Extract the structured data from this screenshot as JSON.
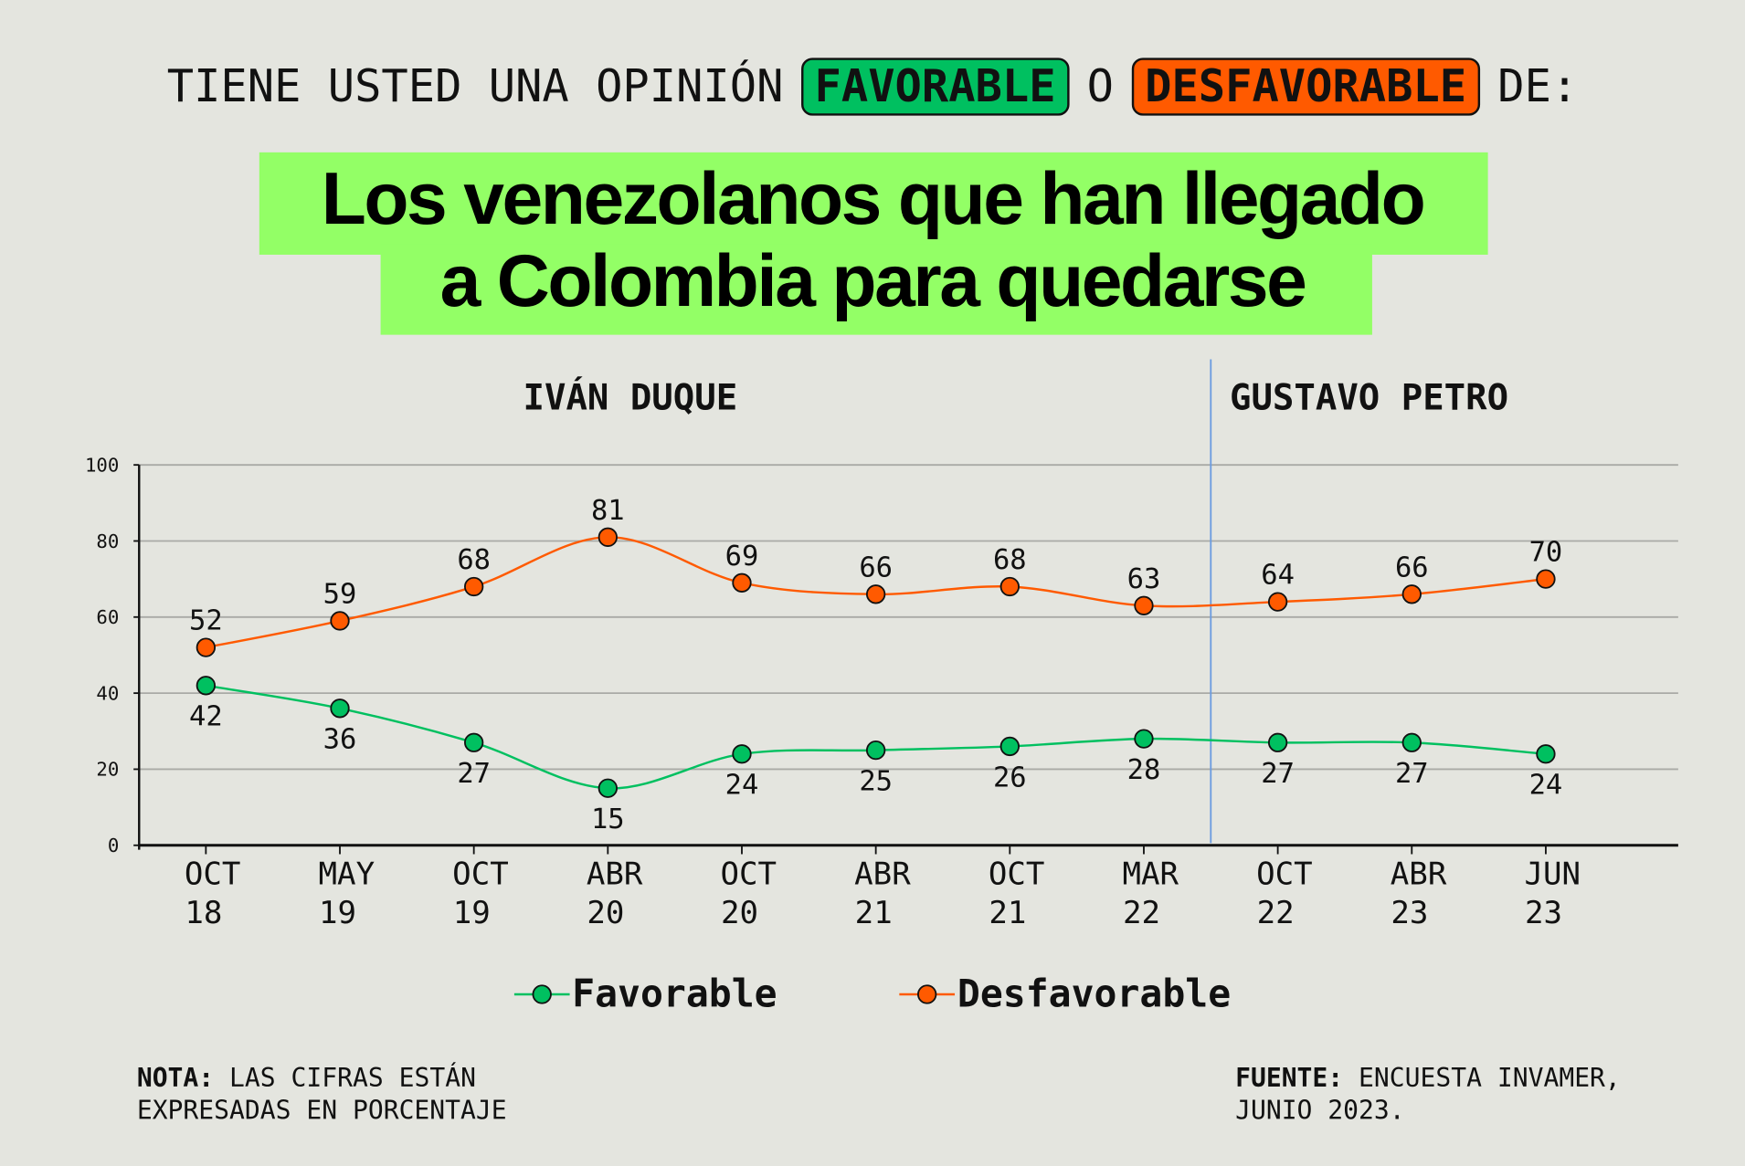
{
  "header": {
    "question_prefix": "TIENE USTED UNA OPINIÓN",
    "favorable": "FAVORABLE",
    "conj": "O",
    "desfavorable": "DESFAVORABLE",
    "suffix": "DE:"
  },
  "title": {
    "line1": "Los venezolanos que han llegado",
    "line2": "a Colombia para quedarse"
  },
  "eras": {
    "duque": "IVÁN DUQUE",
    "petro": "GUSTAVO PETRO"
  },
  "colors": {
    "favorable": "#00c060",
    "desfavorable": "#ff5a00",
    "title_bg": "#93ff66",
    "divider": "#6a9be0"
  },
  "chart_data": {
    "type": "line",
    "categories": [
      [
        "OCT",
        "18"
      ],
      [
        "MAY",
        "19"
      ],
      [
        "OCT",
        "19"
      ],
      [
        "ABR",
        "20"
      ],
      [
        "OCT",
        "20"
      ],
      [
        "ABR",
        "21"
      ],
      [
        "OCT",
        "21"
      ],
      [
        "MAR",
        "22"
      ],
      [
        "OCT",
        "22"
      ],
      [
        "ABR",
        "23"
      ],
      [
        "JUN",
        "23"
      ]
    ],
    "series": [
      {
        "name": "Favorable",
        "color": "#00c060",
        "values": [
          42,
          36,
          27,
          15,
          24,
          25,
          26,
          28,
          27,
          27,
          24
        ]
      },
      {
        "name": "Desfavorable",
        "color": "#ff5a00",
        "values": [
          52,
          59,
          68,
          81,
          69,
          66,
          68,
          63,
          64,
          66,
          70
        ]
      }
    ],
    "ylim": [
      0,
      100
    ],
    "yticks": [
      0,
      20,
      40,
      60,
      80,
      100
    ],
    "grid": true,
    "divider_between": [
      "MAR 22",
      "OCT 22"
    ],
    "legend_position": "bottom"
  },
  "notes": {
    "nota_label": "NOTA:",
    "nota_line1": "LAS CIFRAS ESTÁN",
    "nota_line2": "EXPRESADAS EN PORCENTAJE",
    "fuente_label": "FUENTE:",
    "fuente_line1": "ENCUESTA INVAMER,",
    "fuente_line2": "JUNIO 2023."
  }
}
